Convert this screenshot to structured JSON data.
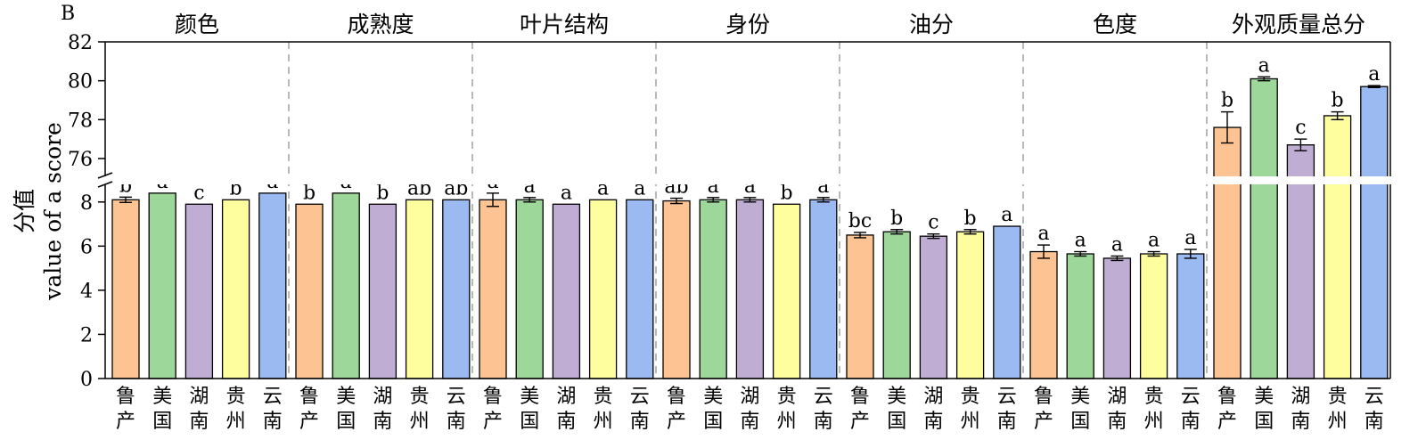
{
  "chart_data": {
    "type": "bar",
    "panel_label": "B",
    "ylabel_cn": "分值",
    "ylabel_en": "value of a score",
    "y_lower_ticks": [
      "0",
      "2",
      "4",
      "6",
      "8"
    ],
    "y_upper_ticks": [
      "76",
      "78",
      "80",
      "82"
    ],
    "y_lower_range": [
      0,
      9
    ],
    "y_upper_range": [
      74.9,
      82
    ],
    "region_colors": {
      "鲁产": "#FDC392",
      "美国": "#9ED79A",
      "湖南": "#C0ADD4",
      "贵州": "#FFFE9E",
      "云南": "#9CBAF2"
    },
    "groups": [
      {
        "name": "颜色",
        "bars": [
          {
            "region": "鲁产",
            "value": 8.1,
            "error": 0.12,
            "letter": "b"
          },
          {
            "region": "美国",
            "value": 8.4,
            "error": 0,
            "letter": "a"
          },
          {
            "region": "湖南",
            "value": 7.9,
            "error": 0,
            "letter": "c"
          },
          {
            "region": "贵州",
            "value": 8.1,
            "error": 0,
            "letter": "b"
          },
          {
            "region": "云南",
            "value": 8.4,
            "error": 0,
            "letter": "a"
          }
        ]
      },
      {
        "name": "成熟度",
        "bars": [
          {
            "region": "鲁产",
            "value": 7.9,
            "error": 0,
            "letter": "b"
          },
          {
            "region": "美国",
            "value": 8.4,
            "error": 0,
            "letter": "a"
          },
          {
            "region": "湖南",
            "value": 7.9,
            "error": 0,
            "letter": "b"
          },
          {
            "region": "贵州",
            "value": 8.1,
            "error": 0,
            "letter": "ab"
          },
          {
            "region": "云南",
            "value": 8.1,
            "error": 0,
            "letter": "ab"
          }
        ]
      },
      {
        "name": "叶片结构",
        "bars": [
          {
            "region": "鲁产",
            "value": 8.1,
            "error": 0.3,
            "letter": "a"
          },
          {
            "region": "美国",
            "value": 8.1,
            "error": 0.1,
            "letter": "a"
          },
          {
            "region": "湖南",
            "value": 7.9,
            "error": 0,
            "letter": "a"
          },
          {
            "region": "贵州",
            "value": 8.1,
            "error": 0,
            "letter": "a"
          },
          {
            "region": "云南",
            "value": 8.1,
            "error": 0,
            "letter": "a"
          }
        ]
      },
      {
        "name": "身份",
        "bars": [
          {
            "region": "鲁产",
            "value": 8.05,
            "error": 0.12,
            "letter": "ab"
          },
          {
            "region": "美国",
            "value": 8.1,
            "error": 0.1,
            "letter": "a"
          },
          {
            "region": "湖南",
            "value": 8.1,
            "error": 0.1,
            "letter": "a"
          },
          {
            "region": "贵州",
            "value": 7.9,
            "error": 0,
            "letter": "b"
          },
          {
            "region": "云南",
            "value": 8.1,
            "error": 0.1,
            "letter": "a"
          }
        ]
      },
      {
        "name": "油分",
        "bars": [
          {
            "region": "鲁产",
            "value": 6.5,
            "error": 0.12,
            "letter": "bc"
          },
          {
            "region": "美国",
            "value": 6.65,
            "error": 0.1,
            "letter": "b"
          },
          {
            "region": "湖南",
            "value": 6.45,
            "error": 0.1,
            "letter": "c"
          },
          {
            "region": "贵州",
            "value": 6.65,
            "error": 0.1,
            "letter": "b"
          },
          {
            "region": "云南",
            "value": 6.9,
            "error": 0,
            "letter": "a"
          }
        ]
      },
      {
        "name": "色度",
        "bars": [
          {
            "region": "鲁产",
            "value": 5.75,
            "error": 0.3,
            "letter": "a"
          },
          {
            "region": "美国",
            "value": 5.65,
            "error": 0.1,
            "letter": "a"
          },
          {
            "region": "湖南",
            "value": 5.45,
            "error": 0.1,
            "letter": "a"
          },
          {
            "region": "贵州",
            "value": 5.65,
            "error": 0.1,
            "letter": "a"
          },
          {
            "region": "云南",
            "value": 5.65,
            "error": 0.2,
            "letter": "a"
          }
        ]
      },
      {
        "name": "外观质量总分",
        "bars": [
          {
            "region": "鲁产",
            "value": 77.6,
            "error": 0.8,
            "letter": "b"
          },
          {
            "region": "美国",
            "value": 80.1,
            "error": 0.1,
            "letter": "a"
          },
          {
            "region": "湖南",
            "value": 76.7,
            "error": 0.3,
            "letter": "c"
          },
          {
            "region": "贵州",
            "value": 78.2,
            "error": 0.2,
            "letter": "b"
          },
          {
            "region": "云南",
            "value": 79.7,
            "error": 0.05,
            "letter": "a"
          }
        ]
      }
    ]
  }
}
